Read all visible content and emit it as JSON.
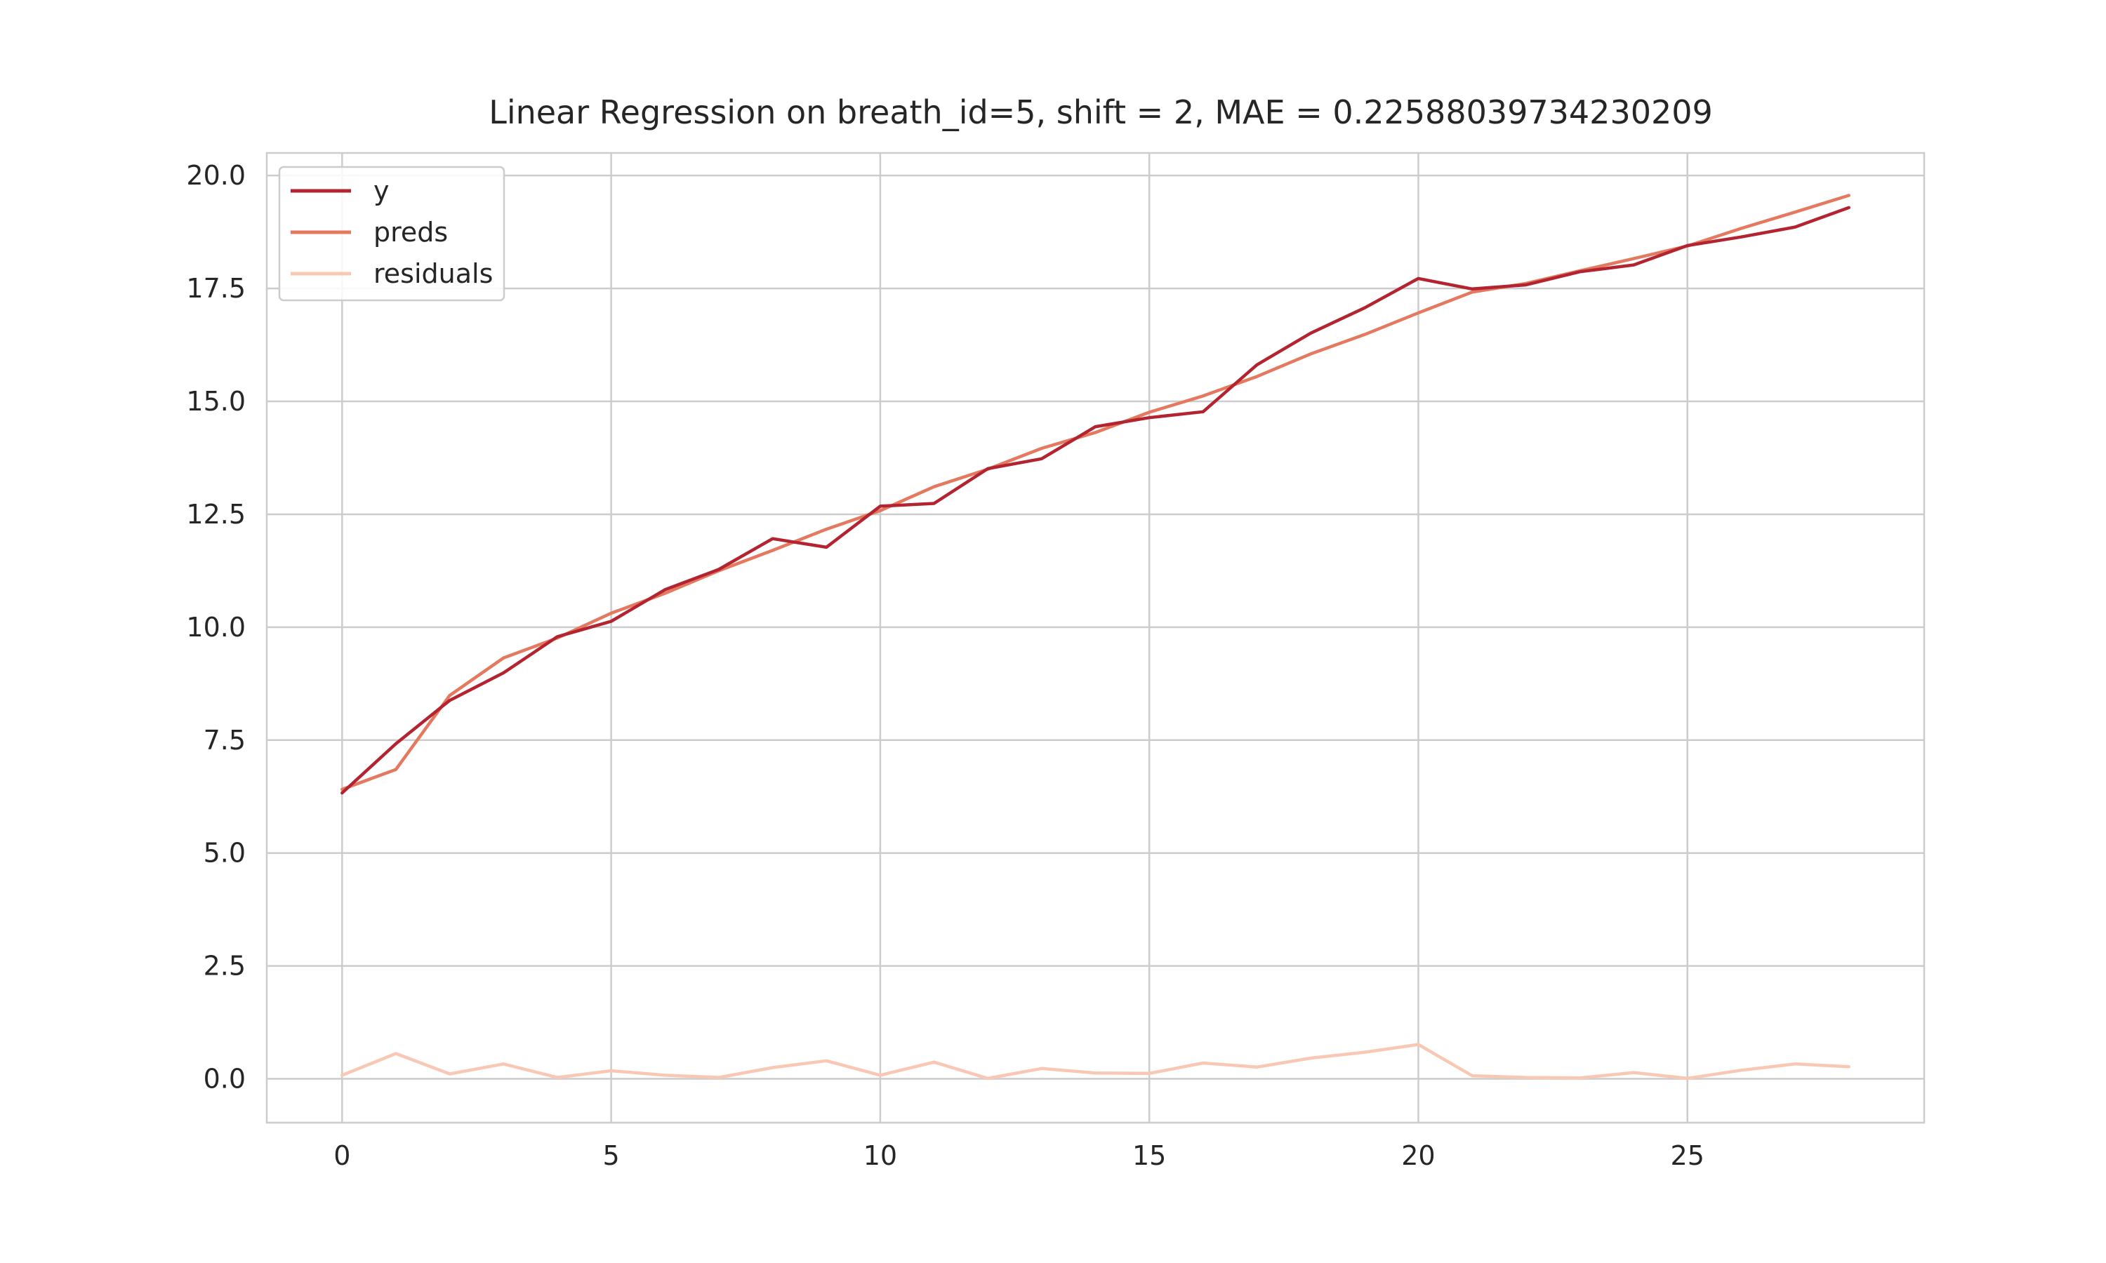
{
  "chart_data": {
    "type": "line",
    "title": "Linear Regression on breath_id=5, shift = 2, MAE = 0.22588039734230209",
    "xlabel": "",
    "ylabel": "",
    "xlim": [
      -1.4,
      29.4
    ],
    "ylim": [
      -0.97,
      20.5
    ],
    "xticks": [
      0,
      5,
      10,
      15,
      20,
      25
    ],
    "xtick_labels": [
      "0",
      "5",
      "10",
      "15",
      "20",
      "25"
    ],
    "yticks": [
      0,
      2.5,
      5,
      7.5,
      10,
      12.5,
      15,
      17.5,
      20
    ],
    "ytick_labels": [
      "0.0",
      "2.5",
      "5.0",
      "7.5",
      "10.0",
      "12.5",
      "15.0",
      "17.5",
      "20.0"
    ],
    "grid": true,
    "legend_position": "top-left",
    "x": [
      0,
      1,
      2,
      3,
      4,
      5,
      6,
      7,
      8,
      9,
      10,
      11,
      12,
      13,
      14,
      15,
      16,
      17,
      18,
      19,
      20,
      21,
      22,
      23,
      24,
      25,
      26,
      27,
      28
    ],
    "series": [
      {
        "name": "y",
        "color": "#b42430",
        "values": [
          6.33,
          7.42,
          8.38,
          8.99,
          9.79,
          10.13,
          10.83,
          11.28,
          11.96,
          11.77,
          12.68,
          12.74,
          13.51,
          13.73,
          14.44,
          14.64,
          14.77,
          15.81,
          16.51,
          17.07,
          17.72,
          17.49,
          17.58,
          17.87,
          18.02,
          18.45,
          18.64,
          18.86,
          19.29
        ]
      },
      {
        "name": "preds",
        "color": "#e5795f",
        "values": [
          6.41,
          6.85,
          8.49,
          9.32,
          9.76,
          10.31,
          10.75,
          11.25,
          11.7,
          12.17,
          12.58,
          13.11,
          13.5,
          13.96,
          14.31,
          14.76,
          15.12,
          15.55,
          16.05,
          16.48,
          16.96,
          17.42,
          17.61,
          17.89,
          18.16,
          18.44,
          18.83,
          19.19,
          19.56
        ]
      },
      {
        "name": "residuals",
        "color": "#f9c8b4",
        "values": [
          0.08,
          0.56,
          0.11,
          0.33,
          0.03,
          0.18,
          0.08,
          0.03,
          0.25,
          0.4,
          0.08,
          0.37,
          0.01,
          0.23,
          0.13,
          0.12,
          0.35,
          0.26,
          0.46,
          0.59,
          0.76,
          0.07,
          0.03,
          0.02,
          0.14,
          0.01,
          0.19,
          0.33,
          0.27
        ]
      }
    ]
  }
}
